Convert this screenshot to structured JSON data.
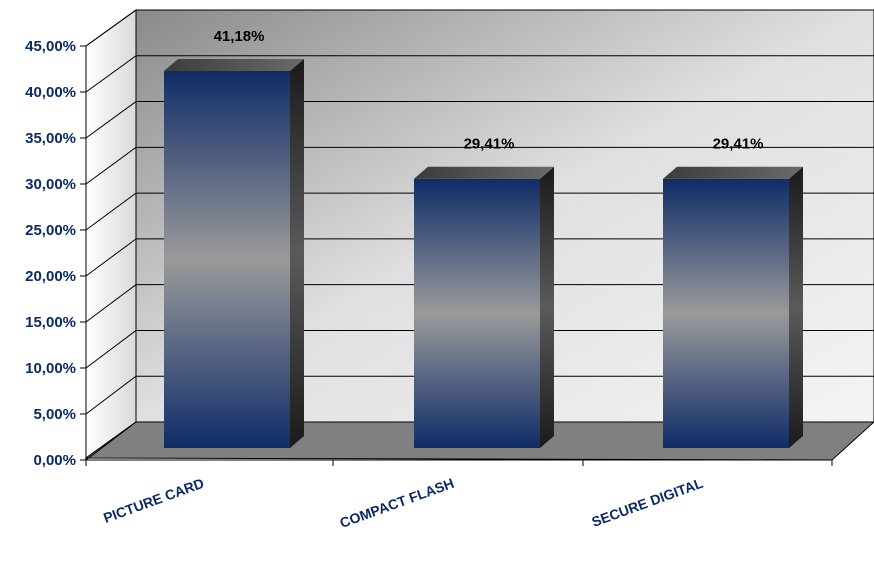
{
  "chart_data": {
    "type": "bar",
    "categories": [
      "PICTURE CARD",
      "COMPACT FLASH",
      "SECURE DIGITAL"
    ],
    "values": [
      41.18,
      29.41,
      29.41
    ],
    "data_labels": [
      "41,18%",
      "29,41%",
      "29,41%"
    ],
    "ylim": [
      0,
      45
    ],
    "y_ticks": [
      0,
      5,
      10,
      15,
      20,
      25,
      30,
      35,
      40,
      45
    ],
    "y_tick_labels": [
      "0,00%",
      "5,00%",
      "10,00%",
      "15,00%",
      "20,00%",
      "25,00%",
      "30,00%",
      "35,00%",
      "40,00%",
      "45,00%"
    ],
    "grid": true,
    "style": "3d-column",
    "colors": {
      "bar_dark": "#12306a",
      "bar_mid": "#9a9a9a",
      "tick_text": "#0b2a66"
    }
  }
}
